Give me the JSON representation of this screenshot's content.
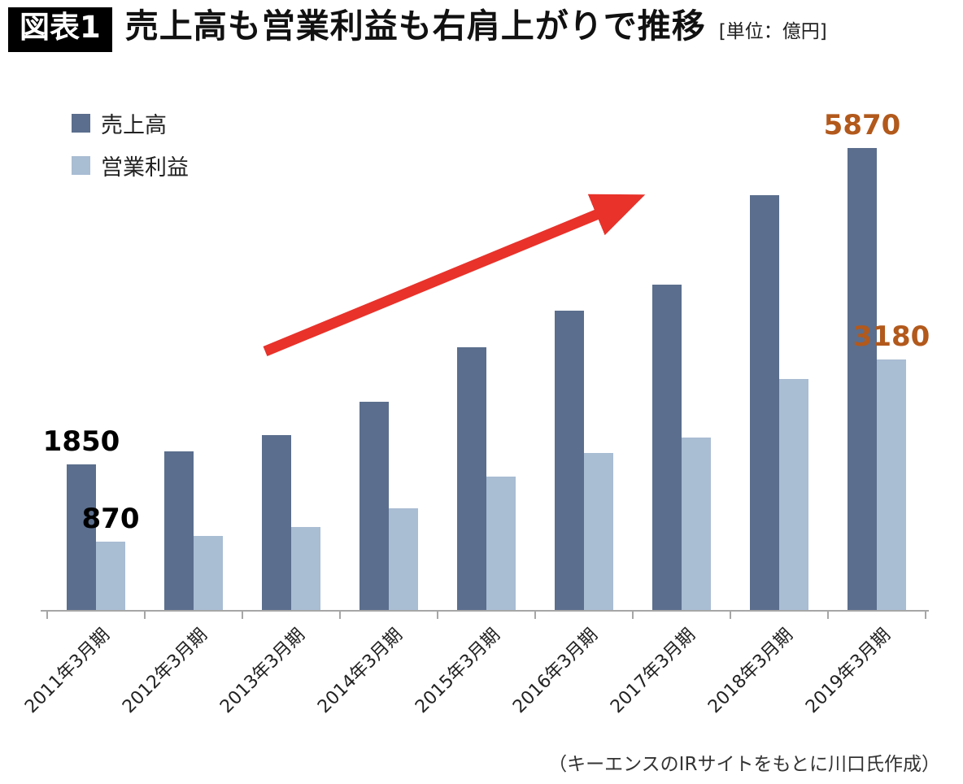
{
  "header": {
    "badge": "図表1",
    "title": "売上高も営業利益も右肩上がりで推移",
    "unit": "[単位：億円]"
  },
  "legend": {
    "items": [
      {
        "label": "売上高",
        "color": "#5b6e8d"
      },
      {
        "label": "営業利益",
        "color": "#a9bdd3"
      }
    ]
  },
  "chart_data": {
    "type": "bar",
    "title": "売上高も営業利益も右肩上がりで推移",
    "unit": "億円",
    "categories": [
      "2011年3月期",
      "2012年3月期",
      "2013年3月期",
      "2014年3月期",
      "2015年3月期",
      "2016年3月期",
      "2017年3月期",
      "2018年3月期",
      "2019年3月期"
    ],
    "series": [
      {
        "name": "売上高",
        "color": "#5b6e8d",
        "values": [
          1850,
          2010,
          2220,
          2650,
          3340,
          3800,
          4130,
          5270,
          5870
        ]
      },
      {
        "name": "営業利益",
        "color": "#a9bdd3",
        "values": [
          870,
          940,
          1050,
          1290,
          1690,
          1990,
          2190,
          2930,
          3180
        ]
      }
    ],
    "ylim": [
      0,
      6200
    ],
    "grid": false,
    "legend_position": "top-left",
    "annotations": [
      {
        "text": "1850",
        "series": 0,
        "index": 0,
        "color": "#000000"
      },
      {
        "text": "870",
        "series": 1,
        "index": 0,
        "color": "#000000"
      },
      {
        "text": "5870",
        "series": 0,
        "index": 8,
        "color": "#b2591c"
      },
      {
        "text": "3180",
        "series": 1,
        "index": 8,
        "color": "#b2591c"
      }
    ],
    "trend_arrow": {
      "color": "#e8322a",
      "direction": "up-right"
    }
  },
  "footer": {
    "credit": "（キーエンスのIRサイトをもとに川口氏作成）"
  }
}
